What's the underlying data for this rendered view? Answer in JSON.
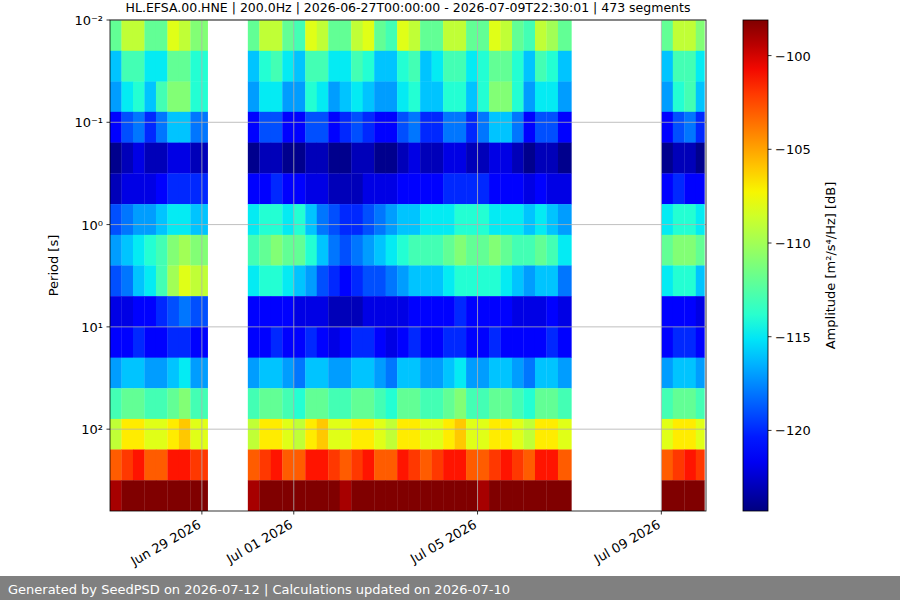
{
  "chart_data": {
    "type": "heatmap",
    "title": "HL.EFSA.00.HNE | 200.0Hz | 2026-06-27T00:00:00 - 2026-07-09T22:30:01 | 473 segments",
    "y_label": "Period [s]",
    "footer": "Generated by SeedPSD on 2026-07-12 | Calculations updated on 2026-07-10",
    "log": "y",
    "grid": true,
    "xlim": [
      "2026-06-27T00:00",
      "2026-07-09T23:20"
    ],
    "xticks": [
      {
        "value": "2026-06-29T00:00",
        "label": "Jun 29 2026"
      },
      {
        "value": "2026-07-01T00:00",
        "label": "Jul 01 2026"
      },
      {
        "value": "2026-07-05T00:00",
        "label": "Jul 05 2026"
      },
      {
        "value": "2026-07-09T00:00",
        "label": "Jul 09 2026"
      }
    ],
    "ylim": [
      0.01,
      631
    ],
    "yticks": [
      {
        "value": 0.01,
        "label": "10⁻²"
      },
      {
        "value": 0.1,
        "label": "10⁻¹"
      },
      {
        "value": 1,
        "label": "10⁰"
      },
      {
        "value": 10,
        "label": "10¹"
      },
      {
        "value": 100,
        "label": "10²"
      }
    ],
    "x": [
      "2026-06-27T00:00",
      "2026-06-27T06:00",
      "2026-06-27T12:00",
      "2026-06-27T18:00",
      "2026-06-28T00:00",
      "2026-06-28T06:00",
      "2026-06-28T12:00",
      "2026-06-28T18:00",
      "2026-06-29T03:00",
      "2026-06-30T00:00",
      "2026-06-30T06:00",
      "2026-06-30T12:00",
      "2026-06-30T18:00",
      "2026-07-01T00:00",
      "2026-07-01T06:00",
      "2026-07-01T12:00",
      "2026-07-01T18:00",
      "2026-07-02T00:00",
      "2026-07-02T06:00",
      "2026-07-02T12:00",
      "2026-07-02T18:00",
      "2026-07-03T00:00",
      "2026-07-03T06:00",
      "2026-07-03T12:00",
      "2026-07-03T18:00",
      "2026-07-04T00:00",
      "2026-07-04T06:00",
      "2026-07-04T12:00",
      "2026-07-04T18:00",
      "2026-07-05T00:00",
      "2026-07-05T06:00",
      "2026-07-05T12:00",
      "2026-07-05T18:00",
      "2026-07-06T00:00",
      "2026-07-06T06:00",
      "2026-07-06T12:00",
      "2026-07-06T18:00",
      "2026-07-07T01:00",
      "2026-07-09T00:00",
      "2026-07-09T06:00",
      "2026-07-09T12:00",
      "2026-07-09T18:00",
      "2026-07-09T22:30"
    ],
    "y": [
      0.01,
      0.02,
      0.04,
      0.079,
      0.158,
      0.316,
      0.631,
      1.26,
      2.51,
      5.01,
      10,
      20,
      39.8,
      79.4,
      158,
      316,
      631
    ],
    "values": [
      [
        -112,
        -109,
        -109,
        -112,
        -112,
        -108,
        -109,
        -111,
        null,
        -112,
        -109,
        -109,
        -112,
        -113,
        -108,
        -109,
        -112,
        -112,
        -109,
        -108,
        -112,
        -113,
        -108,
        -109,
        -112,
        -112,
        -109,
        -109,
        -112,
        -112,
        -108,
        -109,
        -112,
        -113,
        -109,
        -110,
        -112,
        null,
        -112,
        -109,
        -109,
        -111
      ],
      [
        -116,
        -113,
        -113,
        -115,
        -115,
        -112,
        -112,
        -114,
        null,
        -116,
        -114,
        -113,
        -115,
        -116,
        -113,
        -113,
        -115,
        -115,
        -113,
        -114,
        -116,
        -116,
        -114,
        -113,
        -116,
        -115,
        -113,
        -113,
        -115,
        -114,
        -112,
        -112,
        -114,
        -116,
        -113,
        -114,
        -116,
        null,
        -116,
        -113,
        -113,
        -115
      ],
      [
        -117,
        -115,
        -114,
        -116,
        -113,
        -111,
        -111,
        -114,
        null,
        -117,
        -115,
        -115,
        -117,
        -117,
        -114,
        -115,
        -117,
        -116,
        -115,
        -116,
        -117,
        -117,
        -115,
        -114,
        -116,
        -116,
        -114,
        -114,
        -116,
        -114,
        -111,
        -111,
        -114,
        -117,
        -115,
        -115,
        -117,
        null,
        -117,
        -114,
        -113,
        -116
      ],
      [
        -121,
        -119,
        -118,
        -120,
        -118,
        -116,
        -116,
        -118,
        null,
        -121,
        -119,
        -119,
        -121,
        -121,
        -119,
        -119,
        -121,
        -120,
        -119,
        -120,
        -121,
        -121,
        -119,
        -118,
        -120,
        -120,
        -118,
        -118,
        -120,
        -118,
        -116,
        -116,
        -118,
        -121,
        -119,
        -119,
        -121,
        null,
        -121,
        -119,
        -118,
        -120
      ],
      [
        -124,
        -123,
        -122,
        -123,
        -123,
        -122,
        -122,
        -123,
        null,
        -124,
        -123,
        -123,
        -124,
        -124,
        -123,
        -123,
        -124,
        -124,
        -123,
        -123,
        -124,
        -124,
        -123,
        -122,
        -123,
        -123,
        -122,
        -122,
        -123,
        -123,
        -122,
        -122,
        -123,
        -124,
        -123,
        -123,
        -124,
        null,
        -124,
        -123,
        -123,
        -124
      ],
      [
        -123,
        -122,
        -122,
        -122,
        -121,
        -120,
        -120,
        -120,
        null,
        -121,
        -121,
        -120,
        -121,
        -121,
        -122,
        -122,
        -123,
        -123,
        -123,
        -122,
        -122,
        -122,
        -121,
        -121,
        -121,
        -121,
        -120,
        -120,
        -120,
        -120,
        -121,
        -121,
        -121,
        -122,
        -121,
        -122,
        -122,
        null,
        -121,
        -120,
        -121,
        -121
      ],
      [
        -119,
        -118,
        -117,
        -117,
        -116,
        -115,
        -115,
        -116,
        null,
        -115,
        -114,
        -114,
        -115,
        -114,
        -116,
        -118,
        -119,
        -120,
        -120,
        -119,
        -118,
        -117,
        -116,
        -116,
        -115,
        -115,
        -115,
        -114,
        -114,
        -114,
        -115,
        -115,
        -115,
        -116,
        -115,
        -116,
        -117,
        null,
        -115,
        -114,
        -114,
        -115
      ],
      [
        -117,
        -116,
        -115,
        -114,
        -113,
        -111,
        -110,
        -111,
        null,
        -113,
        -112,
        -111,
        -112,
        -112,
        -114,
        -116,
        -118,
        -119,
        -118,
        -117,
        -116,
        -115,
        -114,
        -113,
        -113,
        -113,
        -112,
        -111,
        -112,
        -112,
        -111,
        -112,
        -113,
        -113,
        -112,
        -113,
        -115,
        null,
        -112,
        -111,
        -111,
        -112
      ],
      [
        -119,
        -118,
        -116,
        -115,
        -113,
        -110,
        -108,
        -109,
        null,
        -115,
        -114,
        -114,
        -115,
        -116,
        -117,
        -119,
        -120,
        -121,
        -120,
        -119,
        -119,
        -118,
        -117,
        -116,
        -116,
        -116,
        -115,
        -114,
        -114,
        -114,
        -114,
        -115,
        -116,
        -117,
        -116,
        -116,
        -118,
        null,
        -115,
        -114,
        -114,
        -116
      ],
      [
        -122,
        -122,
        -121,
        -121,
        -120,
        -119,
        -118,
        -119,
        null,
        -121,
        -121,
        -121,
        -121,
        -122,
        -122,
        -122,
        -123,
        -123,
        -123,
        -122,
        -122,
        -122,
        -122,
        -121,
        -121,
        -121,
        -121,
        -120,
        -121,
        -121,
        -121,
        -121,
        -122,
        -122,
        -122,
        -121,
        -122,
        null,
        -121,
        -121,
        -121,
        -122
      ],
      [
        -121,
        -121,
        -120,
        -121,
        -121,
        -120,
        -120,
        -121,
        null,
        -121,
        -121,
        -120,
        -121,
        -121,
        -120,
        -121,
        -122,
        -121,
        -120,
        -120,
        -121,
        -122,
        -121,
        -120,
        -121,
        -121,
        -120,
        -120,
        -121,
        -121,
        -120,
        -121,
        -121,
        -121,
        -121,
        -120,
        -121,
        null,
        -121,
        -120,
        -120,
        -121
      ],
      [
        -117,
        -116,
        -116,
        -117,
        -117,
        -116,
        -115,
        -117,
        null,
        -117,
        -116,
        -116,
        -117,
        -118,
        -116,
        -116,
        -117,
        -117,
        -116,
        -116,
        -117,
        -118,
        -116,
        -116,
        -117,
        -117,
        -116,
        -115,
        -117,
        -117,
        -116,
        -116,
        -117,
        -118,
        -116,
        -116,
        -117,
        null,
        -117,
        -116,
        -116,
        -117
      ],
      [
        -113,
        -112,
        -112,
        -113,
        -113,
        -112,
        -111,
        -113,
        null,
        -113,
        -112,
        -112,
        -113,
        -114,
        -112,
        -112,
        -113,
        -113,
        -112,
        -112,
        -113,
        -114,
        -112,
        -112,
        -113,
        -113,
        -112,
        -111,
        -113,
        -113,
        -112,
        -112,
        -113,
        -114,
        -112,
        -112,
        -113,
        null,
        -113,
        -112,
        -112,
        -113
      ],
      [
        -109,
        -107,
        -107,
        -108,
        -108,
        -107,
        -106,
        -108,
        null,
        -109,
        -107,
        -107,
        -108,
        -109,
        -107,
        -106,
        -108,
        -108,
        -107,
        -107,
        -108,
        -109,
        -107,
        -107,
        -108,
        -108,
        -107,
        -106,
        -108,
        -108,
        -107,
        -107,
        -108,
        -109,
        -107,
        -107,
        -108,
        null,
        -108,
        -107,
        -107,
        -108
      ],
      [
        -103,
        -102,
        -101,
        -103,
        -103,
        -101,
        -101,
        -102,
        null,
        -103,
        -102,
        -101,
        -103,
        -103,
        -101,
        -101,
        -102,
        -103,
        -102,
        -101,
        -103,
        -103,
        -101,
        -102,
        -103,
        -102,
        -101,
        -101,
        -103,
        -103,
        -102,
        -101,
        -102,
        -103,
        -101,
        -101,
        -103,
        null,
        -103,
        -102,
        -101,
        -102
      ],
      [
        -99,
        -98,
        -97,
        -98,
        -98,
        -97,
        -97,
        -98,
        null,
        -99,
        -98,
        -97,
        -98,
        -98,
        -97,
        -97,
        -98,
        -99,
        -98,
        -97,
        -98,
        -98,
        -97,
        -98,
        -98,
        -98,
        -97,
        -97,
        -98,
        -99,
        -98,
        -97,
        -98,
        -98,
        -97,
        -97,
        -98,
        null,
        -98,
        -97,
        -97,
        -98
      ]
    ],
    "colorbar": {
      "label": "Amplitude [m²/s⁴/Hz] [dB]",
      "range": [
        -124.3,
        -98.1
      ],
      "ticks": [
        -100,
        -105,
        -110,
        -115,
        -120
      ]
    }
  }
}
